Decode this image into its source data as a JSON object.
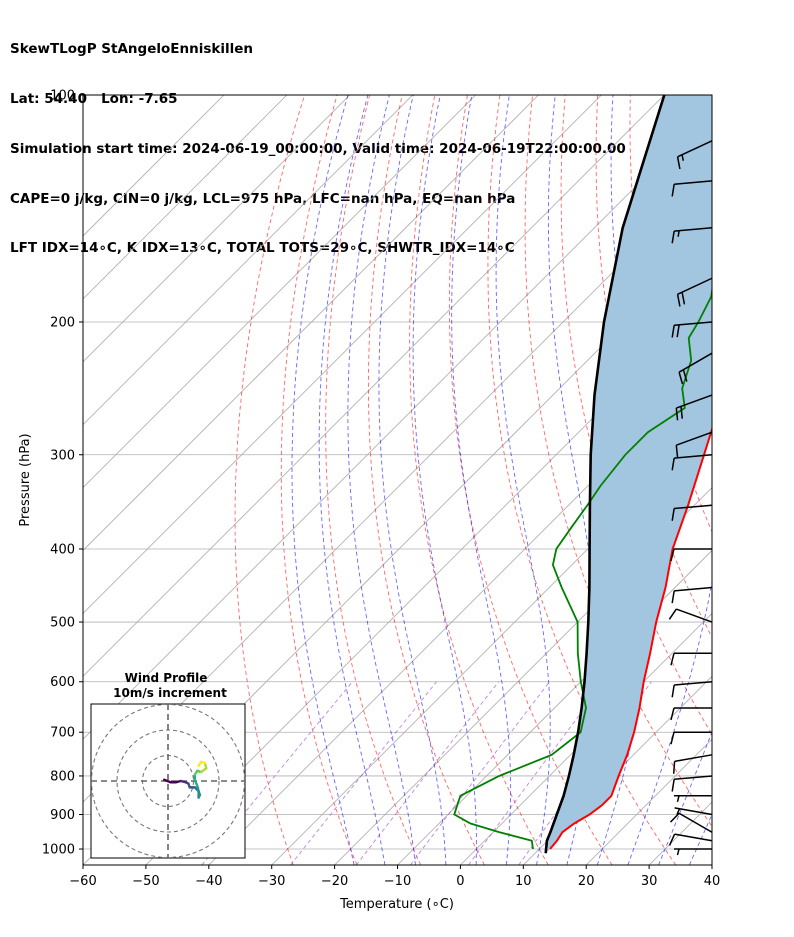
{
  "header": {
    "line1": "SkewTLogP StAngeloEnniskillen",
    "line2": "Lat: 54.40   Lon: -7.65",
    "line3": "Simulation start time: 2024-06-19_00:00:00, Valid time: 2024-06-19T22:00:00.00",
    "line4": "CAPE=0 j/kg, CIN=0 j/kg, LCL=975 hPa, LFC=nan hPa, EQ=nan hPa",
    "line5": "LFT IDX=14∘C, K IDX=13∘C, TOTAL TOTS=29∘C, SHWTR_IDX=14∘C"
  },
  "colors": {
    "temperature": "#ff0000",
    "dewpoint": "#008000",
    "parcel": "#000000",
    "fill": "#a3c6e0",
    "dry_adiabat": "#ff0000",
    "moist_adiabat": "#0000ff",
    "mixing_ratio": "#9932cc",
    "isotherm": "#aaaaaa"
  },
  "chart_data": [
    {
      "type": "line",
      "subtype": "skew-T log-P",
      "xlabel": "Temperature (∘C)",
      "ylabel": "Pressure (hPa)",
      "xlim": [
        -60,
        40
      ],
      "ylim": [
        1050,
        100
      ],
      "y_scale": "log",
      "x_ticks": [
        "−60",
        "−50",
        "−40",
        "−30",
        "−20",
        "−10",
        "0",
        "10",
        "20",
        "30",
        "40"
      ],
      "y_ticks": [
        "100",
        "200",
        "300",
        "400",
        "500",
        "600",
        "700",
        "800",
        "900",
        "1000"
      ],
      "grid": true,
      "series": [
        {
          "key": "temperature",
          "points": [
            [
              1000,
              11.7
            ],
            [
              975,
              11.5
            ],
            [
              950,
              11.0
            ],
            [
              925,
              11.5
            ],
            [
              900,
              12.5
            ],
            [
              875,
              13.0
            ],
            [
              850,
              13.0
            ],
            [
              800,
              11.0
            ],
            [
              750,
              9.0
            ],
            [
              700,
              6.5
            ],
            [
              650,
              3.5
            ],
            [
              600,
              0.0
            ],
            [
              550,
              -3.5
            ],
            [
              500,
              -7.5
            ],
            [
              450,
              -11.5
            ],
            [
              400,
              -16.5
            ],
            [
              350,
              -21.0
            ],
            [
              300,
              -26.5
            ],
            [
              250,
              -33.0
            ],
            [
              225,
              -37.0
            ],
            [
              210,
              -40.5
            ],
            [
              200,
              -42.5
            ],
            [
              190,
              -44.0
            ],
            [
              180,
              -45.5
            ],
            [
              170,
              -47.5
            ],
            [
              160,
              -49.5
            ],
            [
              150,
              -52.0
            ],
            [
              140,
              -54.0
            ],
            [
              130,
              -56.5
            ],
            [
              120,
              -59.0
            ],
            [
              110,
              -62.0
            ],
            [
              100,
              -64.0
            ]
          ]
        },
        {
          "key": "dewpoint",
          "points": [
            [
              1000,
              9.0
            ],
            [
              975,
              7.5
            ],
            [
              950,
              1.0
            ],
            [
              925,
              -5.0
            ],
            [
              900,
              -9.0
            ],
            [
              875,
              -10.0
            ],
            [
              850,
              -11.0
            ],
            [
              800,
              -8.0
            ],
            [
              750,
              -3.0
            ],
            [
              700,
              -2.0
            ],
            [
              650,
              -5.0
            ],
            [
              600,
              -10.0
            ],
            [
              550,
              -15.0
            ],
            [
              500,
              -20.0
            ],
            [
              450,
              -28.0
            ],
            [
              420,
              -33.0
            ],
            [
              400,
              -35.0
            ],
            [
              375,
              -36.0
            ],
            [
              350,
              -37.0
            ],
            [
              330,
              -38.0
            ],
            [
              300,
              -39.0
            ],
            [
              280,
              -39.0
            ],
            [
              260,
              -37.0
            ],
            [
              245,
              -40.5
            ],
            [
              225,
              -43.5
            ],
            [
              210,
              -47.5
            ],
            [
              200,
              -48.5
            ],
            [
              185,
              -50.5
            ],
            [
              175,
              -53.0
            ],
            [
              165,
              -56.0
            ],
            [
              150,
              -59.0
            ],
            [
              140,
              -61.0
            ],
            [
              130,
              -63.0
            ],
            [
              120,
              -65.5
            ],
            [
              110,
              -68.0
            ],
            [
              100,
              -71.0
            ]
          ]
        },
        {
          "key": "parcel",
          "points": [
            [
              1013,
              11.7
            ],
            [
              975,
              9.9
            ],
            [
              950,
              9.1
            ],
            [
              900,
              7.3
            ],
            [
              850,
              5.4
            ],
            [
              800,
              3.1
            ],
            [
              750,
              0.5
            ],
            [
              700,
              -2.4
            ],
            [
              650,
              -5.7
            ],
            [
              600,
              -9.4
            ],
            [
              550,
              -13.6
            ],
            [
              500,
              -18.3
            ],
            [
              450,
              -23.6
            ],
            [
              400,
              -29.7
            ],
            [
              350,
              -36.6
            ],
            [
              300,
              -44.5
            ],
            [
              250,
              -53.4
            ],
            [
              200,
              -63.5
            ],
            [
              150,
              -75.5
            ],
            [
              100,
              -90.0
            ]
          ]
        }
      ],
      "wind_barbs": [
        {
          "p": 1000,
          "speed_kt": 5,
          "dir_deg": 270
        },
        {
          "p": 975,
          "speed_kt": 10,
          "dir_deg": 280
        },
        {
          "p": 950,
          "speed_kt": 10,
          "dir_deg": 300
        },
        {
          "p": 900,
          "speed_kt": 5,
          "dir_deg": 280
        },
        {
          "p": 850,
          "speed_kt": 5,
          "dir_deg": 270
        },
        {
          "p": 800,
          "speed_kt": 10,
          "dir_deg": 265
        },
        {
          "p": 750,
          "speed_kt": 10,
          "dir_deg": 260
        },
        {
          "p": 700,
          "speed_kt": 10,
          "dir_deg": 270
        },
        {
          "p": 650,
          "speed_kt": 10,
          "dir_deg": 270
        },
        {
          "p": 600,
          "speed_kt": 10,
          "dir_deg": 265
        },
        {
          "p": 550,
          "speed_kt": 10,
          "dir_deg": 270
        },
        {
          "p": 500,
          "speed_kt": 10,
          "dir_deg": 290
        },
        {
          "p": 450,
          "speed_kt": 10,
          "dir_deg": 265
        },
        {
          "p": 400,
          "speed_kt": 10,
          "dir_deg": 270
        },
        {
          "p": 350,
          "speed_kt": 10,
          "dir_deg": 265
        },
        {
          "p": 300,
          "speed_kt": 10,
          "dir_deg": 265
        },
        {
          "p": 280,
          "speed_kt": 10,
          "dir_deg": 250
        },
        {
          "p": 250,
          "speed_kt": 20,
          "dir_deg": 250
        },
        {
          "p": 220,
          "speed_kt": 20,
          "dir_deg": 240
        },
        {
          "p": 200,
          "speed_kt": 20,
          "dir_deg": 265
        },
        {
          "p": 175,
          "speed_kt": 20,
          "dir_deg": 245
        },
        {
          "p": 150,
          "speed_kt": 15,
          "dir_deg": 265
        },
        {
          "p": 130,
          "speed_kt": 10,
          "dir_deg": 265
        },
        {
          "p": 115,
          "speed_kt": 15,
          "dir_deg": 245
        }
      ],
      "inset": {
        "title1": "Wind Profile",
        "title2": "10m/s increment",
        "rings_ms": [
          10,
          20,
          30
        ],
        "hodograph_uv": [
          [
            -1.5,
            0.5
          ],
          [
            1.0,
            -0.5
          ],
          [
            3.0,
            -0.5
          ],
          [
            5.0,
            0.0
          ],
          [
            7.0,
            -0.5
          ],
          [
            8.0,
            -1.0
          ],
          [
            8.5,
            -2.5
          ],
          [
            10.5,
            -2.5
          ],
          [
            12.0,
            -4.0
          ],
          [
            12.5,
            -5.5
          ],
          [
            12.0,
            -6.5
          ],
          [
            12.0,
            -4.0
          ],
          [
            11.5,
            -2.0
          ],
          [
            10.5,
            0.5
          ],
          [
            10.5,
            2.5
          ],
          [
            11.5,
            4.0
          ],
          [
            13.0,
            3.5
          ],
          [
            15.0,
            5.0
          ],
          [
            14.5,
            7.0
          ],
          [
            13.0,
            7.5
          ],
          [
            12.0,
            6.0
          ]
        ]
      }
    }
  ]
}
